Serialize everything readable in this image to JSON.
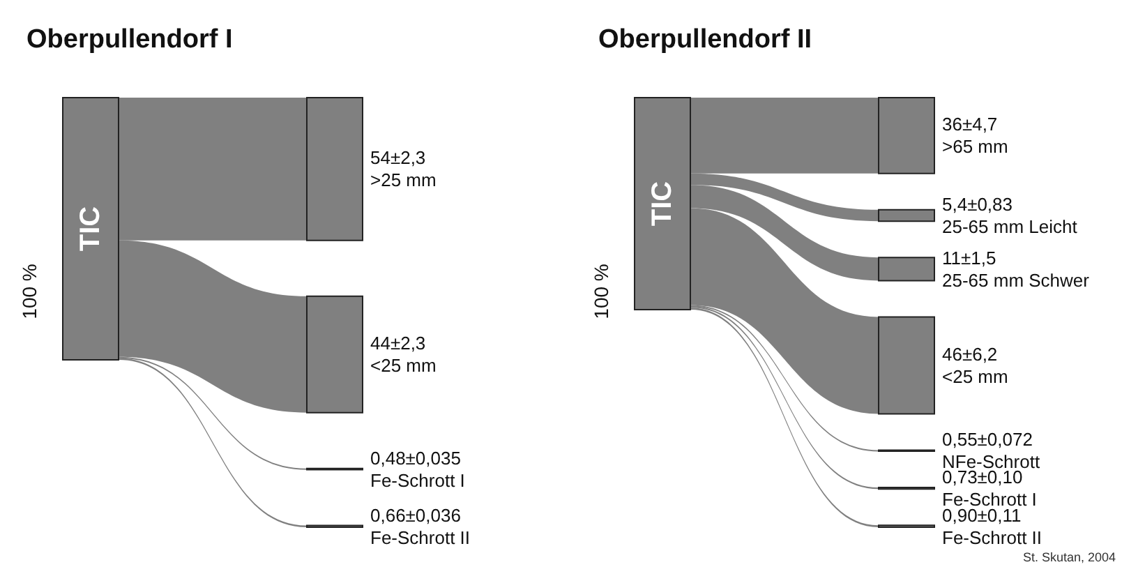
{
  "chart_data": [
    {
      "type": "other",
      "title": "Oberpullendorf I",
      "color": "#808080",
      "annotations": [
        "TIC",
        "100 %"
      ],
      "categories": [
        ">25 mm",
        "<25 mm",
        "Fe-Schrott I",
        "Fe-Schrott II"
      ],
      "values": [
        54,
        44,
        0.48,
        0.66
      ],
      "value_labels": [
        "54±2,3",
        "44±2,3",
        "0,48±0,035",
        "0,66±0,036"
      ]
    },
    {
      "type": "other",
      "title": "Oberpullendorf II",
      "color": "#808080",
      "annotations": [
        "TIC",
        "100 %",
        "St. Skutan, 2004"
      ],
      "categories": [
        ">65 mm",
        "25-65 mm Leicht",
        "25-65 mm Schwer",
        "<25 mm",
        "NFe-Schrott",
        "Fe-Schrott I",
        "Fe-Schrott II"
      ],
      "values": [
        36,
        5.4,
        11,
        46,
        0.55,
        0.73,
        0.9
      ],
      "value_labels": [
        "36±4,7",
        "5,4±0,83",
        "11±1,5",
        "46±6,2",
        "0,55±0,072",
        "0,73±0,10",
        "0,90±0,11"
      ]
    }
  ]
}
